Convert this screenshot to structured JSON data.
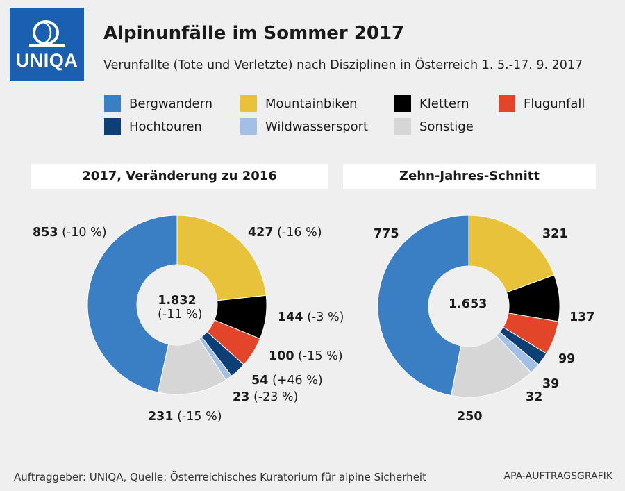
{
  "logo": {
    "text": "UNIQA",
    "color": "#1b5fb0"
  },
  "title": "Alpinunfälle im Sommer 2017",
  "subtitle": "Verunfallte (Tote und Verletzte) nach Disziplinen in Österreich 1. 5.-17. 9. 2017",
  "footer": {
    "source": "Auftraggeber: UNIQA, Quelle: Österreichisches Kuratorium für alpine Sicherheit",
    "credit": "APA-AUFTRAGSGRAFIK"
  },
  "chart_data": [
    {
      "type": "pie",
      "title": "2017, Veränderung zu 2016",
      "center_label": "1.832",
      "center_change": "(-11 %)",
      "categories": [
        "Mountainbiken",
        "Klettern",
        "Flugunfall",
        "Hochtouren",
        "Wildwassersport",
        "Sonstige",
        "Bergwandern"
      ],
      "values": [
        427,
        144,
        100,
        54,
        23,
        231,
        853
      ],
      "labels": [
        "427",
        "144",
        "100",
        "54",
        "23",
        "231",
        "853"
      ],
      "changes": [
        "(-16 %)",
        "(-3 %)",
        "(-15 %)",
        "(+46 %)",
        "(-23 %)",
        "(-15 %)",
        "(-10 %)"
      ]
    },
    {
      "type": "pie",
      "title": "Zehn-Jahres-Schnitt",
      "center_label": "1.653",
      "categories": [
        "Mountainbiken",
        "Klettern",
        "Flugunfall",
        "Hochtouren",
        "Wildwassersport",
        "Sonstige",
        "Bergwandern"
      ],
      "values": [
        321,
        137,
        99,
        39,
        32,
        250,
        775
      ],
      "labels": [
        "321",
        "137",
        "99",
        "39",
        "32",
        "250",
        "775"
      ]
    }
  ],
  "legend": [
    {
      "name": "Bergwandern",
      "color": "#3a7ec4"
    },
    {
      "name": "Mountainbiken",
      "color": "#e8c23a"
    },
    {
      "name": "Klettern",
      "color": "#000000"
    },
    {
      "name": "Flugunfall",
      "color": "#e2452a"
    },
    {
      "name": "Hochtouren",
      "color": "#0b3f75"
    },
    {
      "name": "Wildwassersport",
      "color": "#a3bfe6"
    },
    {
      "name": "Sonstige",
      "color": "#d6d6d6"
    }
  ]
}
